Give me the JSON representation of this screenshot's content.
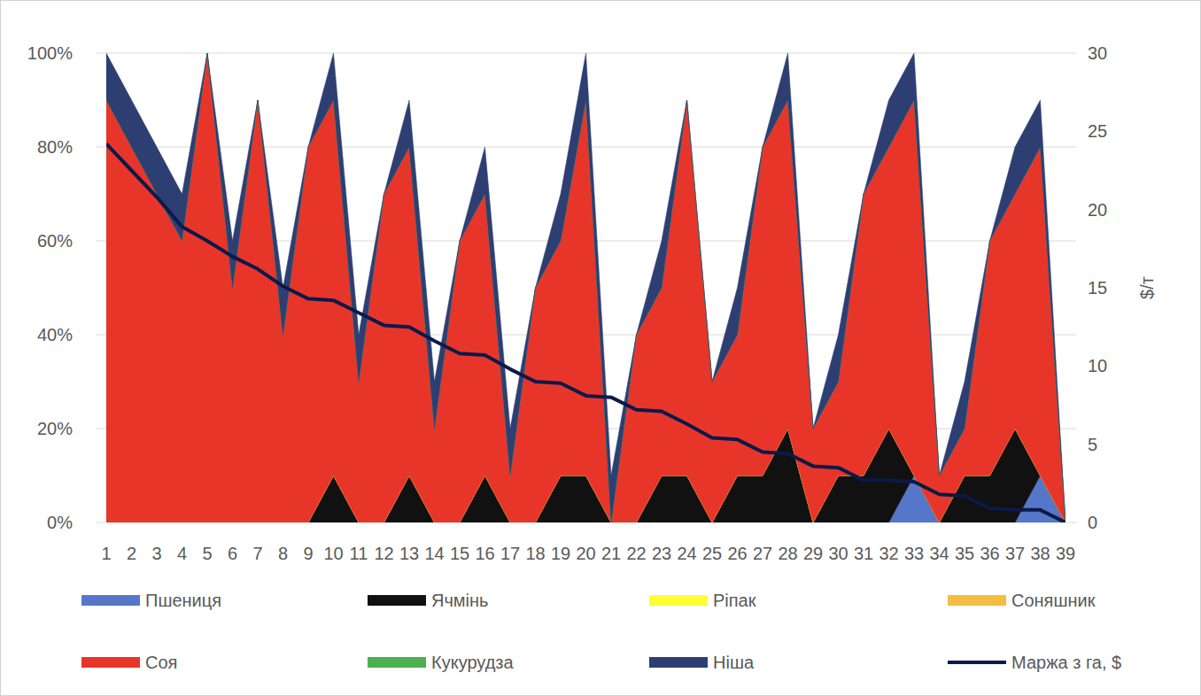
{
  "chart_data": {
    "type": "area",
    "stacked": true,
    "grid": true,
    "legend": "bottom",
    "y2label": "$/т",
    "categories": [
      "1",
      "2",
      "3",
      "4",
      "5",
      "6",
      "7",
      "8",
      "9",
      "10",
      "11",
      "12",
      "13",
      "14",
      "15",
      "16",
      "17",
      "18",
      "19",
      "20",
      "21",
      "22",
      "23",
      "24",
      "25",
      "26",
      "27",
      "28",
      "29",
      "30",
      "31",
      "32",
      "33",
      "34",
      "35",
      "36",
      "37",
      "38",
      "39"
    ],
    "ylim": [
      0,
      100
    ],
    "yticks": [
      {
        "value": 0,
        "label": "0%"
      },
      {
        "value": 20,
        "label": "20%"
      },
      {
        "value": 40,
        "label": "40%"
      },
      {
        "value": 60,
        "label": "60%"
      },
      {
        "value": 80,
        "label": "80%"
      },
      {
        "value": 100,
        "label": "100%"
      }
    ],
    "y2lim": [
      0,
      30
    ],
    "y2ticks": [
      0,
      5,
      10,
      15,
      20,
      25,
      30
    ],
    "series": [
      {
        "name": "Пшениця",
        "type": "area",
        "color": "#5677c9",
        "values": [
          0,
          0,
          0,
          0,
          0,
          0,
          0,
          0,
          0,
          0,
          0,
          0,
          0,
          0,
          0,
          0,
          0,
          0,
          0,
          0,
          0,
          0,
          0,
          0,
          0,
          0,
          0,
          0,
          0,
          0,
          0,
          0,
          10,
          0,
          0,
          0,
          0,
          10,
          0
        ]
      },
      {
        "name": "Ячмінь",
        "type": "area",
        "color": "#111111",
        "values": [
          0,
          0,
          0,
          0,
          0,
          0,
          0,
          0,
          0,
          10,
          0,
          0,
          10,
          0,
          0,
          10,
          0,
          0,
          10,
          10,
          0,
          0,
          10,
          10,
          0,
          10,
          10,
          20,
          0,
          10,
          10,
          20,
          0,
          0,
          10,
          10,
          20,
          0,
          0
        ]
      },
      {
        "name": "Ріпак",
        "type": "area",
        "color": "#ffff33",
        "values": [
          0,
          0,
          0,
          0,
          0,
          0,
          0,
          0,
          0,
          0,
          0,
          0,
          0,
          0,
          0,
          0,
          0,
          0,
          0,
          0,
          0,
          0,
          0,
          0,
          0,
          0,
          0,
          0,
          0,
          0,
          0,
          0,
          0,
          0,
          0,
          0,
          0,
          0,
          0
        ]
      },
      {
        "name": "Соняшник",
        "type": "area",
        "color": "#f2bd42",
        "values": [
          0,
          0,
          0,
          0,
          0,
          0,
          0,
          0,
          0,
          0,
          0,
          0,
          0,
          0,
          0,
          0,
          0,
          0,
          0,
          0,
          0,
          0,
          0,
          0,
          0,
          0,
          0,
          0,
          0,
          0,
          0,
          0,
          0,
          0,
          0,
          0,
          0,
          0,
          0
        ]
      },
      {
        "name": "Соя",
        "type": "area",
        "color": "#e8352a",
        "values": [
          90,
          80,
          70,
          60,
          100,
          50,
          90,
          40,
          80,
          80,
          30,
          70,
          70,
          20,
          60,
          60,
          10,
          50,
          50,
          80,
          0,
          40,
          40,
          80,
          30,
          30,
          70,
          70,
          20,
          20,
          60,
          60,
          80,
          10,
          10,
          50,
          50,
          70,
          0
        ]
      },
      {
        "name": "Кукурудза",
        "type": "area",
        "color": "#4caf50",
        "values": [
          0,
          0,
          0,
          0,
          0,
          0,
          0,
          0,
          0,
          0,
          0,
          0,
          0,
          0,
          0,
          0,
          0,
          0,
          0,
          0,
          0,
          0,
          0,
          0,
          0,
          0,
          0,
          0,
          0,
          0,
          0,
          0,
          0,
          0,
          0,
          0,
          0,
          0,
          0
        ]
      },
      {
        "name": "Ніша",
        "type": "area",
        "color": "#2d3f72",
        "values": [
          10,
          10,
          10,
          10,
          0,
          10,
          0,
          10,
          0,
          10,
          10,
          0,
          10,
          10,
          0,
          10,
          10,
          0,
          10,
          10,
          10,
          0,
          10,
          0,
          0,
          10,
          0,
          10,
          0,
          10,
          0,
          10,
          10,
          0,
          10,
          0,
          10,
          10,
          0
        ]
      },
      {
        "name": "Маржа з га, $",
        "type": "line",
        "axis": "y2",
        "color": "#0b1a4a",
        "values": [
          24.2,
          22.5,
          20.8,
          18.9,
          18.0,
          17.0,
          16.2,
          15.1,
          14.3,
          14.2,
          13.4,
          12.6,
          12.5,
          11.6,
          10.8,
          10.7,
          9.8,
          9.0,
          8.9,
          8.1,
          8.0,
          7.2,
          7.1,
          6.3,
          5.4,
          5.3,
          4.5,
          4.4,
          3.6,
          3.5,
          2.7,
          2.7,
          2.6,
          1.8,
          1.7,
          0.9,
          0.8,
          0.8,
          0
        ]
      }
    ]
  }
}
